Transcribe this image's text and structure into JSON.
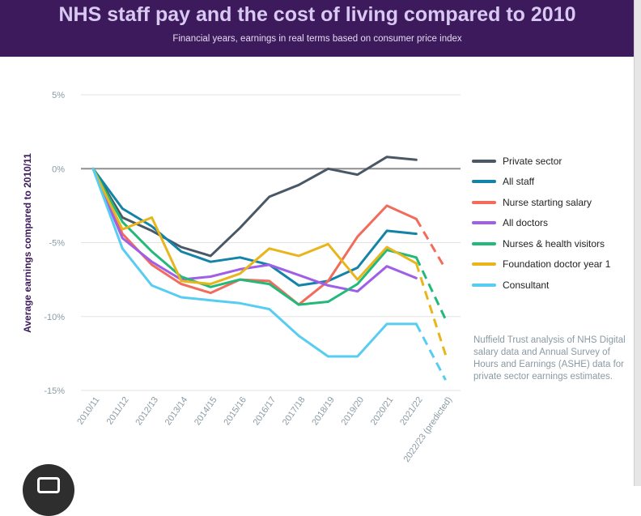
{
  "header": {
    "title": "NHS staff pay and the cost of living compared to 2010",
    "subtitle": "Financial years, earnings in real terms based on consumer price index"
  },
  "chart_data": {
    "type": "line",
    "x": [
      "2010/11",
      "2011/12",
      "2012/13",
      "2013/14",
      "2014/15",
      "2015/16",
      "2016/17",
      "2017/18",
      "2018/19",
      "2019/20",
      "2020/21",
      "2021/22",
      "2022/23 (predicted)"
    ],
    "ylabel": "Average earnings compared to 2010/11",
    "ylim": [
      -15,
      5
    ],
    "yticks": [
      5,
      0,
      -5,
      -10,
      -15
    ],
    "ytick_labels": [
      "5%",
      "0%",
      "-5%",
      "-10%",
      "-15%"
    ],
    "grid": "horizontal",
    "legend_position": "right",
    "predicted_from_index": 11,
    "series": [
      {
        "name": "Private sector",
        "color": "#4a5866",
        "values": [
          0,
          -3.3,
          -4.2,
          -5.3,
          -5.9,
          -4.0,
          -1.9,
          -1.1,
          0.0,
          -0.4,
          0.8,
          0.6,
          null
        ]
      },
      {
        "name": "All staff",
        "color": "#1483a8",
        "values": [
          0,
          -2.7,
          -3.9,
          -5.6,
          -6.3,
          -6.0,
          -6.5,
          -7.9,
          -7.6,
          -6.7,
          -4.2,
          -4.4,
          null
        ]
      },
      {
        "name": "Nurse starting salary",
        "color": "#f26b5b",
        "values": [
          0,
          -4.4,
          -6.5,
          -7.8,
          -8.4,
          -7.5,
          -7.6,
          -9.2,
          -7.6,
          -4.6,
          -2.5,
          -3.4,
          -6.8
        ]
      },
      {
        "name": "All doctors",
        "color": "#9f5fe6",
        "values": [
          0,
          -4.7,
          -6.3,
          -7.5,
          -7.3,
          -6.8,
          -6.5,
          -7.2,
          -7.9,
          -8.3,
          -6.6,
          -7.4,
          null
        ]
      },
      {
        "name": "Nurses & health visitors",
        "color": "#22b97a",
        "values": [
          0,
          -3.6,
          -5.6,
          -7.3,
          -8.0,
          -7.5,
          -7.8,
          -9.2,
          -9.0,
          -7.8,
          -5.5,
          -6.0,
          -10.2
        ]
      },
      {
        "name": "Foundation doctor year 1",
        "color": "#e8b61c",
        "values": [
          0,
          -4.1,
          -3.3,
          -7.6,
          -7.8,
          -7.1,
          -5.4,
          -5.9,
          -5.1,
          -7.5,
          -5.3,
          -6.4,
          -12.6
        ]
      },
      {
        "name": "Consultant",
        "color": "#57cdf1",
        "values": [
          0,
          -5.4,
          -7.9,
          -8.7,
          -8.9,
          -9.1,
          -9.5,
          -11.3,
          -12.7,
          -12.7,
          -10.5,
          -10.5,
          -14.3
        ]
      }
    ],
    "note": "Nuffield Trust analysis of NHS Digital salary data and Annual Survey of Hours and Earnings (ASHE) data for private sector earnings estimates."
  }
}
